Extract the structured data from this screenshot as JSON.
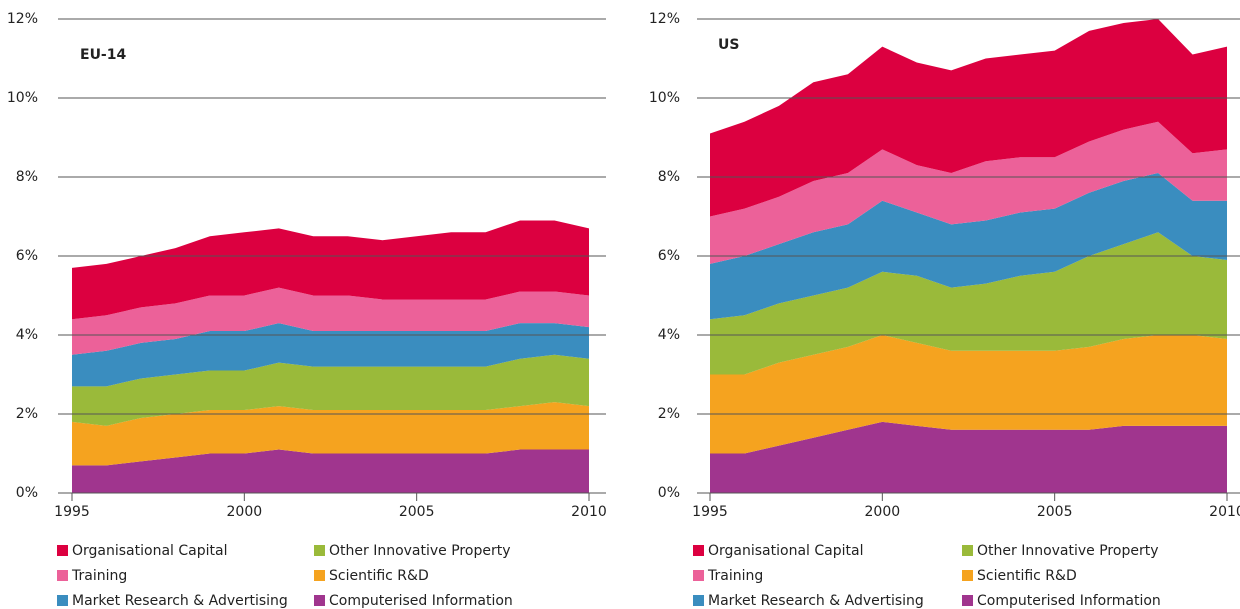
{
  "chart_data": [
    {
      "type": "stacked_area",
      "title": "EU-14",
      "x": [
        1995,
        1996,
        1997,
        1998,
        1999,
        2000,
        2001,
        2002,
        2003,
        2004,
        2005,
        2006,
        2007,
        2008,
        2009,
        2010
      ],
      "xlim": [
        1995,
        2010
      ],
      "xticks": [
        1995,
        2000,
        2005,
        2010
      ],
      "ylim": [
        0,
        12
      ],
      "yticks": [
        {
          "value": 0,
          "label": "0%"
        },
        {
          "value": 2,
          "label": "2%"
        },
        {
          "value": 4,
          "label": "4%"
        },
        {
          "value": 6,
          "label": "6%"
        },
        {
          "value": 8,
          "label": "8%"
        },
        {
          "value": 10,
          "label": "10%"
        },
        {
          "value": 12,
          "label": "12%"
        }
      ],
      "grid": true,
      "series": [
        {
          "name": "Computerised Information",
          "color": "#a0358e",
          "values": [
            0.7,
            0.7,
            0.8,
            0.9,
            1.0,
            1.0,
            1.1,
            1.0,
            1.0,
            1.0,
            1.0,
            1.0,
            1.0,
            1.1,
            1.1,
            1.1
          ]
        },
        {
          "name": "Scientific R&D",
          "color": "#f5a31f",
          "values": [
            1.1,
            1.0,
            1.1,
            1.1,
            1.1,
            1.1,
            1.1,
            1.1,
            1.1,
            1.1,
            1.1,
            1.1,
            1.1,
            1.1,
            1.2,
            1.1
          ]
        },
        {
          "name": "Other Innovative Property",
          "color": "#9aba3a",
          "values": [
            0.9,
            1.0,
            1.0,
            1.0,
            1.0,
            1.0,
            1.1,
            1.1,
            1.1,
            1.1,
            1.1,
            1.1,
            1.1,
            1.2,
            1.2,
            1.2
          ]
        },
        {
          "name": "Market Research & Advertising",
          "color": "#3a8dbf",
          "values": [
            0.8,
            0.9,
            0.9,
            0.9,
            1.0,
            1.0,
            1.0,
            0.9,
            0.9,
            0.9,
            0.9,
            0.9,
            0.9,
            0.9,
            0.8,
            0.8
          ]
        },
        {
          "name": "Training",
          "color": "#ec6199",
          "values": [
            0.9,
            0.9,
            0.9,
            0.9,
            0.9,
            0.9,
            0.9,
            0.9,
            0.9,
            0.8,
            0.8,
            0.8,
            0.8,
            0.8,
            0.8,
            0.8
          ]
        },
        {
          "name": "Organisational Capital",
          "color": "#dc0040",
          "values": [
            1.3,
            1.3,
            1.3,
            1.4,
            1.5,
            1.6,
            1.5,
            1.5,
            1.5,
            1.5,
            1.6,
            1.7,
            1.7,
            1.8,
            1.8,
            1.7
          ]
        }
      ]
    },
    {
      "type": "stacked_area",
      "title": "US",
      "x": [
        1995,
        1996,
        1997,
        1998,
        1999,
        2000,
        2001,
        2002,
        2003,
        2004,
        2005,
        2006,
        2007,
        2008,
        2009,
        2010
      ],
      "xlim": [
        1995,
        2010
      ],
      "xticks": [
        1995,
        2000,
        2005,
        2010
      ],
      "ylim": [
        0,
        12
      ],
      "yticks": [
        {
          "value": 0,
          "label": "0%"
        },
        {
          "value": 2,
          "label": "2%"
        },
        {
          "value": 4,
          "label": "4%"
        },
        {
          "value": 6,
          "label": "6%"
        },
        {
          "value": 8,
          "label": "8%"
        },
        {
          "value": 10,
          "label": "10%"
        },
        {
          "value": 12,
          "label": "12%"
        }
      ],
      "grid": true,
      "series": [
        {
          "name": "Computerised Information",
          "color": "#a0358e",
          "values": [
            1.0,
            1.0,
            1.2,
            1.4,
            1.6,
            1.8,
            1.7,
            1.6,
            1.6,
            1.6,
            1.6,
            1.6,
            1.7,
            1.7,
            1.7,
            1.7
          ]
        },
        {
          "name": "Scientific R&D",
          "color": "#f5a31f",
          "values": [
            2.0,
            2.0,
            2.1,
            2.1,
            2.1,
            2.2,
            2.1,
            2.0,
            2.0,
            2.0,
            2.0,
            2.1,
            2.2,
            2.3,
            2.3,
            2.2
          ]
        },
        {
          "name": "Other Innovative Property",
          "color": "#9aba3a",
          "values": [
            1.4,
            1.5,
            1.5,
            1.5,
            1.5,
            1.6,
            1.7,
            1.6,
            1.7,
            1.9,
            2.0,
            2.3,
            2.4,
            2.6,
            2.0,
            2.0
          ]
        },
        {
          "name": "Market Research & Advertising",
          "color": "#3a8dbf",
          "values": [
            1.4,
            1.5,
            1.5,
            1.6,
            1.6,
            1.8,
            1.6,
            1.6,
            1.6,
            1.6,
            1.6,
            1.6,
            1.6,
            1.5,
            1.4,
            1.5
          ]
        },
        {
          "name": "Training",
          "color": "#ec6199",
          "values": [
            1.2,
            1.2,
            1.2,
            1.3,
            1.3,
            1.3,
            1.2,
            1.3,
            1.5,
            1.4,
            1.3,
            1.3,
            1.3,
            1.3,
            1.2,
            1.3
          ]
        },
        {
          "name": "Organisational Capital",
          "color": "#dc0040",
          "values": [
            2.1,
            2.2,
            2.3,
            2.5,
            2.5,
            2.6,
            2.6,
            2.6,
            2.6,
            2.6,
            2.7,
            2.8,
            2.7,
            2.6,
            2.5,
            2.6
          ]
        }
      ]
    }
  ]
}
